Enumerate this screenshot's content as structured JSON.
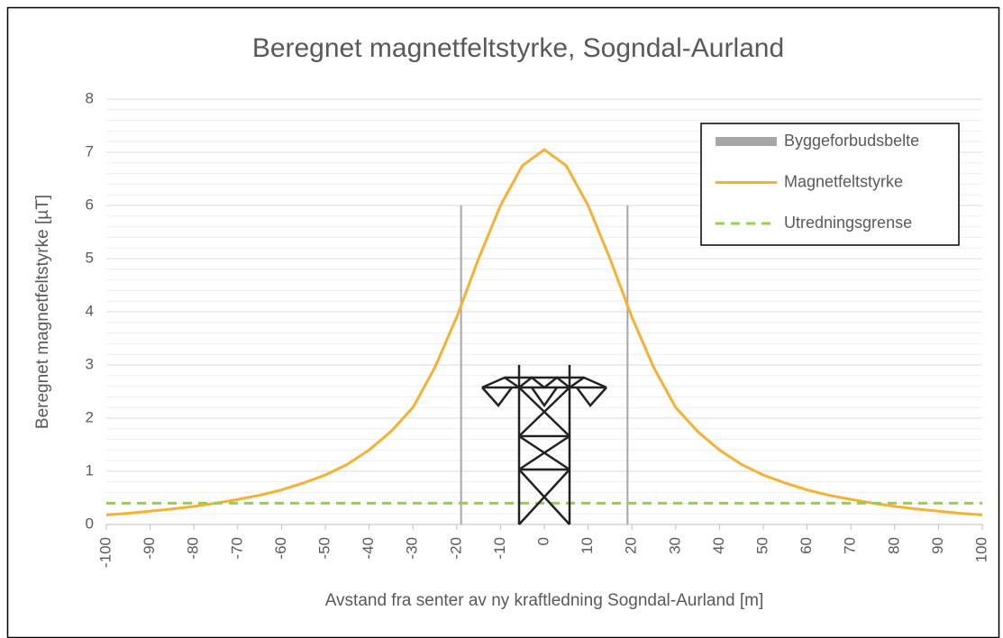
{
  "chart_data": {
    "type": "line",
    "title": "Beregnet magnetfeltstyrke, Sogndal-Aurland",
    "x_label": "Avstand fra senter av ny kraftledning Sogndal-Aurland [m]",
    "y_label": "Beregnet magnetfeltstyrke [µT]",
    "xlim": [
      -100,
      100
    ],
    "ylim": [
      0,
      8
    ],
    "xticks": [
      -100,
      -90,
      -80,
      -70,
      -60,
      -50,
      -40,
      -30,
      -20,
      -10,
      0,
      10,
      20,
      30,
      40,
      50,
      60,
      70,
      80,
      90,
      100
    ],
    "yticks": [
      0,
      1,
      2,
      3,
      4,
      5,
      6,
      7,
      8
    ],
    "grid": true,
    "minor_grid": true,
    "legend": "upper right",
    "series": [
      {
        "name": "Byggeforbudsbelte",
        "color": "#a6a6a6",
        "style": "band",
        "x": [
          -19,
          -19,
          null,
          19,
          19
        ],
        "values": [
          0,
          6,
          null,
          0,
          6
        ]
      },
      {
        "name": "Magnetfeltstyrke",
        "color": "#f4b133",
        "style": "solid",
        "x": [
          -100,
          -95,
          -90,
          -85,
          -80,
          -75,
          -70,
          -65,
          -60,
          -55,
          -50,
          -45,
          -40,
          -35,
          -30,
          -25,
          -20,
          -15,
          -10,
          -5,
          0,
          5,
          10,
          15,
          20,
          25,
          30,
          35,
          40,
          45,
          50,
          55,
          60,
          65,
          70,
          75,
          80,
          85,
          90,
          95,
          100
        ],
        "values": [
          0.18,
          0.21,
          0.25,
          0.29,
          0.34,
          0.4,
          0.47,
          0.55,
          0.65,
          0.78,
          0.93,
          1.13,
          1.4,
          1.75,
          2.2,
          2.95,
          3.9,
          5.0,
          6.0,
          6.75,
          7.05,
          6.75,
          6.0,
          5.0,
          3.9,
          2.95,
          2.2,
          1.75,
          1.4,
          1.13,
          0.93,
          0.78,
          0.65,
          0.55,
          0.47,
          0.4,
          0.34,
          0.29,
          0.25,
          0.21,
          0.18
        ]
      },
      {
        "name": "Utredningsgrense",
        "color": "#92d050",
        "style": "dashed",
        "x": [
          -100,
          100
        ],
        "values": [
          0.4,
          0.4
        ]
      }
    ]
  }
}
